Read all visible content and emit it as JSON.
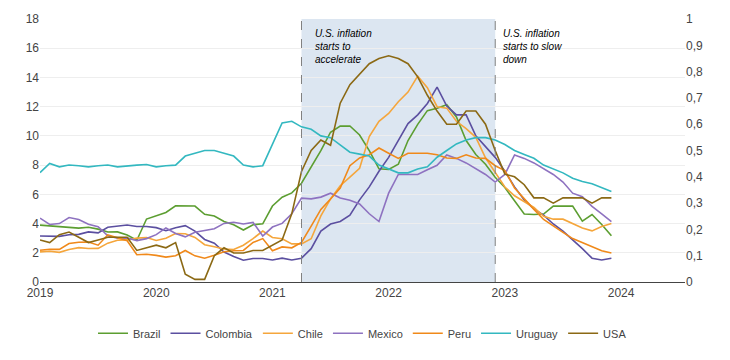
{
  "chart_data": {
    "type": "line",
    "x": [
      2019,
      2019.0833,
      2019.1667,
      2019.25,
      2019.3333,
      2019.4167,
      2019.5,
      2019.5833,
      2019.6667,
      2019.75,
      2019.8333,
      2019.9167,
      2020,
      2020.0833,
      2020.1667,
      2020.25,
      2020.3333,
      2020.4167,
      2020.5,
      2020.5833,
      2020.6667,
      2020.75,
      2020.8333,
      2020.9167,
      2021,
      2021.0833,
      2021.1667,
      2021.25,
      2021.3333,
      2021.4167,
      2021.5,
      2021.5833,
      2021.6667,
      2021.75,
      2021.8333,
      2021.9167,
      2022,
      2022.0833,
      2022.1667,
      2022.25,
      2022.3333,
      2022.4167,
      2022.5,
      2022.5833,
      2022.6667,
      2022.75,
      2022.8333,
      2022.9167,
      2023,
      2023.0833,
      2023.1667,
      2023.25,
      2023.3333,
      2023.4167,
      2023.5,
      2023.5833,
      2023.6667,
      2023.75,
      2023.8333,
      2023.9167
    ],
    "series": [
      {
        "name": "Brazil",
        "color": "#5c9e31",
        "values": [
          3.89,
          3.83,
          3.78,
          3.75,
          3.69,
          3.75,
          3.62,
          3.42,
          3.43,
          3.22,
          2.86,
          4.31,
          4.52,
          4.76,
          5.22,
          5.2,
          5.2,
          4.63,
          4.52,
          4.14,
          3.92,
          3.56,
          3.92,
          3.98,
          5.2,
          5.8,
          6.1,
          6.76,
          7.87,
          8.99,
          10.25,
          10.67,
          10.68,
          10.06,
          8.99,
          7.75,
          7.7,
          8.06,
          9.68,
          10.79,
          11.73,
          11.89,
          12.13,
          11.3,
          9.68,
          8.73,
          8.06,
          7.17,
          6.47,
          5.6,
          4.65,
          4.62,
          4.65,
          5.19,
          5.19,
          5.19,
          4.16,
          4.62,
          3.94,
          3.16
        ]
      },
      {
        "name": "Colombia",
        "color": "#5b4fa0",
        "values": [
          3.15,
          3.12,
          3.12,
          3.23,
          3.26,
          3.43,
          3.36,
          3.75,
          3.82,
          3.9,
          3.8,
          3.8,
          3.72,
          3.51,
          3.72,
          3.86,
          3.48,
          2.91,
          2.66,
          2.05,
          1.75,
          1.49,
          1.61,
          1.61,
          1.51,
          1.63,
          1.51,
          1.63,
          2.28,
          3.48,
          3.97,
          4.14,
          4.58,
          5.62,
          6.51,
          7.58,
          8.53,
          9.67,
          10.84,
          11.44,
          12.22,
          13.34,
          12.04,
          11.44,
          11.44,
          10.0,
          9.28,
          8.53,
          7.58,
          6.51,
          5.62,
          5.0,
          4.58,
          3.97,
          3.48,
          2.91,
          2.28,
          1.63,
          1.51,
          1.63
        ]
      },
      {
        "name": "Chile",
        "color": "#f5a63c",
        "values": [
          2.06,
          2.1,
          2.03,
          2.22,
          2.35,
          2.29,
          2.3,
          2.66,
          2.86,
          2.88,
          3.0,
          3.04,
          2.84,
          3.0,
          3.32,
          3.3,
          3.05,
          2.55,
          2.41,
          2.26,
          2.22,
          2.52,
          2.97,
          3.49,
          3.05,
          2.96,
          2.61,
          2.61,
          2.96,
          4.52,
          5.69,
          6.59,
          7.18,
          7.78,
          9.95,
          11.0,
          11.54,
          12.34,
          13.0,
          14.09,
          13.3,
          12.0,
          11.9,
          11.0,
          10.5,
          9.9,
          8.5,
          7.5,
          6.5,
          5.9,
          5.5,
          5.1,
          4.5,
          4.3,
          4.3,
          4.0,
          3.7,
          3.5,
          3.8,
          4.0
        ]
      },
      {
        "name": "Mexico",
        "color": "#8e72c0",
        "values": [
          4.37,
          3.94,
          4.0,
          4.41,
          4.28,
          3.95,
          3.78,
          3.16,
          3.0,
          3.02,
          2.83,
          2.97,
          3.24,
          3.7,
          3.32,
          3.09,
          3.41,
          3.55,
          3.64,
          4.01,
          4.09,
          3.97,
          4.08,
          3.15,
          3.76,
          4.01,
          4.67,
          5.74,
          5.69,
          5.81,
          6.08,
          5.75,
          5.59,
          5.34,
          4.67,
          4.14,
          6.08,
          7.36,
          7.36,
          7.36,
          7.68,
          7.99,
          8.7,
          8.46,
          8.15,
          7.77,
          7.36,
          6.84,
          7.36,
          8.7,
          8.46,
          8.15,
          7.77,
          7.36,
          6.84,
          6.08,
          5.84,
          5.18,
          4.67,
          4.14
        ]
      },
      {
        "name": "Peru",
        "color": "#f0891a",
        "values": [
          2.17,
          2.24,
          2.23,
          2.63,
          2.72,
          2.73,
          2.52,
          3.23,
          3.03,
          2.82,
          1.87,
          1.9,
          1.82,
          1.7,
          1.8,
          2.16,
          1.79,
          1.63,
          1.83,
          2.07,
          2.14,
          2.16,
          2.71,
          2.97,
          2.14,
          2.4,
          2.34,
          2.71,
          3.82,
          4.97,
          5.68,
          6.43,
          7.96,
          8.49,
          8.71,
          9.17,
          8.81,
          8.46,
          8.81,
          8.81,
          8.81,
          8.71,
          8.49,
          8.46,
          8.71,
          8.49,
          8.46,
          7.96,
          7.63,
          6.43,
          5.68,
          4.97,
          4.28,
          3.82,
          3.4,
          2.97,
          2.71,
          2.4,
          2.14,
          1.99
        ]
      },
      {
        "name": "Uruguay",
        "color": "#33b8c0",
        "values": [
          7.49,
          8.11,
          7.88,
          8.01,
          7.96,
          7.88,
          7.96,
          8.01,
          7.88,
          7.96,
          8.0,
          8.04,
          7.88,
          7.96,
          8.0,
          8.62,
          8.8,
          9.0,
          9.0,
          8.8,
          8.62,
          8.0,
          7.88,
          7.96,
          9.41,
          10.88,
          11.0,
          10.62,
          10.45,
          10.0,
          9.88,
          9.41,
          8.88,
          8.75,
          8.62,
          8.0,
          7.73,
          7.47,
          7.47,
          7.73,
          7.88,
          8.54,
          9.0,
          9.45,
          9.72,
          9.88,
          9.88,
          9.72,
          9.41,
          9.0,
          8.73,
          8.47,
          8.0,
          7.73,
          7.47,
          7.1,
          6.88,
          6.73,
          6.47,
          6.2
        ]
      },
      {
        "name": "USA",
        "color": "#8b6914",
        "axis": "y2",
        "values": [
          0.16,
          0.15,
          0.18,
          0.19,
          0.17,
          0.15,
          0.16,
          0.17,
          0.17,
          0.17,
          0.12,
          0.13,
          0.14,
          0.13,
          0.15,
          0.03,
          0.01,
          0.01,
          0.1,
          0.13,
          0.11,
          0.11,
          0.12,
          0.12,
          0.14,
          0.16,
          0.26,
          0.42,
          0.5,
          0.54,
          0.52,
          0.68,
          0.75,
          0.79,
          0.83,
          0.85,
          0.86,
          0.85,
          0.83,
          0.78,
          0.71,
          0.65,
          0.6,
          0.6,
          0.65,
          0.65,
          0.6,
          0.5,
          0.41,
          0.4,
          0.37,
          0.32,
          0.32,
          0.3,
          0.32,
          0.32,
          0.32,
          0.3,
          0.32,
          0.32
        ]
      }
    ],
    "xlim": [
      2019,
      2024.55
    ],
    "xticks": [
      2019,
      2020,
      2021,
      2022,
      2023,
      2024
    ],
    "ylim": [
      0,
      18
    ],
    "yticks": [
      0,
      2,
      4,
      6,
      8,
      10,
      12,
      14,
      16,
      18
    ],
    "y2lim": [
      0,
      1
    ],
    "y2ticks": [
      0,
      {
        "value": 0.1,
        "label": "0,1"
      },
      {
        "value": 0.2,
        "label": "0,2"
      },
      {
        "value": 0.3,
        "label": "0,3"
      },
      {
        "value": 0.4,
        "label": "0,4"
      },
      {
        "value": 0.5,
        "label": "0,5"
      },
      {
        "value": 0.6,
        "label": "0,6"
      },
      {
        "value": 0.7,
        "label": "0,7"
      },
      {
        "value": 0.8,
        "label": "0,8"
      },
      {
        "value": 0.9,
        "label": "0,9"
      },
      1
    ],
    "shaded_region": {
      "x": [
        2021.25,
        2022.917
      ],
      "color": "#dce6f1",
      "line_style": "dashed"
    },
    "annotations": [
      {
        "text": "U.S. inflation\nstarts to\naccelerate",
        "x": 2021.35,
        "y": 17.5
      },
      {
        "text": "U.S. inflation\nstarts to slow\ndown",
        "x": 2022.97,
        "y": 17.5
      }
    ],
    "grid": true,
    "legend": "bottom"
  }
}
